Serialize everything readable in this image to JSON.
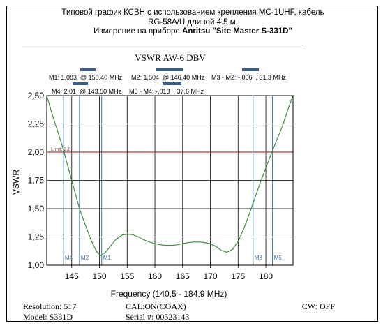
{
  "header": {
    "line1": "Типовой график КСВН с использованием крепления МС-1UHF, кабель",
    "line2": "RG-58A/U длиной 4.5 м.",
    "line3_prefix": "Измерение на приборе ",
    "line3_bold": "Anritsu \"Site Master S-331D\""
  },
  "chart_data": {
    "type": "line",
    "title": "VSWR AW-6 DBV",
    "xlabel": "Frequency (140,5 - 184,9 MHz)",
    "ylabel": "VSWR",
    "xlim": [
      140.5,
      184.9
    ],
    "ylim": [
      1.0,
      2.5
    ],
    "x_ticks": [
      145,
      150,
      155,
      160,
      165,
      170,
      175,
      180
    ],
    "y_ticks": [
      "1,00",
      "1,25",
      "1,50",
      "1,75",
      "2,00",
      "2,25",
      "2,50"
    ],
    "y_tick_values": [
      1.0,
      1.25,
      1.5,
      1.75,
      2.0,
      2.25,
      2.5
    ],
    "grid": true,
    "limit": {
      "value": 2.0,
      "label": "Limit: 2,0",
      "color": "#a04040"
    },
    "series": [
      {
        "color": "#3f8f3f",
        "x": [
          140.5,
          141.5,
          142.5,
          143.5,
          144.5,
          145.5,
          146.4,
          147.5,
          148.5,
          149.5,
          150.2,
          151.0,
          152.0,
          153.0,
          154.0,
          155.0,
          156.0,
          157.0,
          158.0,
          159.0,
          160.0,
          161.0,
          162.0,
          163.0,
          164.0,
          165.0,
          166.0,
          167.0,
          168.0,
          169.0,
          170.0,
          171.0,
          172.0,
          173.0,
          174.0,
          175.0,
          176.0,
          177.0,
          178.0,
          179.0,
          180.0,
          181.0,
          182.0,
          183.0,
          184.0,
          184.9
        ],
        "y": [
          2.5,
          2.33,
          2.18,
          2.02,
          1.84,
          1.66,
          1.5,
          1.35,
          1.22,
          1.12,
          1.085,
          1.11,
          1.17,
          1.23,
          1.265,
          1.275,
          1.27,
          1.25,
          1.225,
          1.205,
          1.19,
          1.18,
          1.175,
          1.175,
          1.18,
          1.19,
          1.2,
          1.205,
          1.205,
          1.2,
          1.19,
          1.165,
          1.13,
          1.115,
          1.14,
          1.21,
          1.32,
          1.45,
          1.59,
          1.73,
          1.86,
          1.99,
          2.11,
          2.23,
          2.38,
          2.5
        ]
      }
    ],
    "markers": [
      {
        "label": "M4",
        "x": 143.5
      },
      {
        "label": "M2",
        "x": 146.4
      },
      {
        "label": "M1",
        "x": 150.4
      },
      {
        "label": "M3",
        "x": 177.7
      },
      {
        "label": "M5",
        "x": 181.2
      }
    ],
    "marker_readouts": {
      "row1": [
        "M1: 1,083  @ 150,40 MHz",
        "M2: 1,504  @ 146,40 MHz",
        "M3 - M2: -,006  , 31,3 MHz"
      ],
      "row2": [
        "M4: 2,01  @ 143,50 MHz",
        "M5 - M4: -,018  , 37,6 MHz"
      ]
    }
  },
  "footer": {
    "resolution": "Resolution:  517",
    "model": "Model: S331D",
    "cal": "CAL:ON(COAX)",
    "serial": "Serial #: 00523143",
    "cw": "CW: OFF"
  }
}
